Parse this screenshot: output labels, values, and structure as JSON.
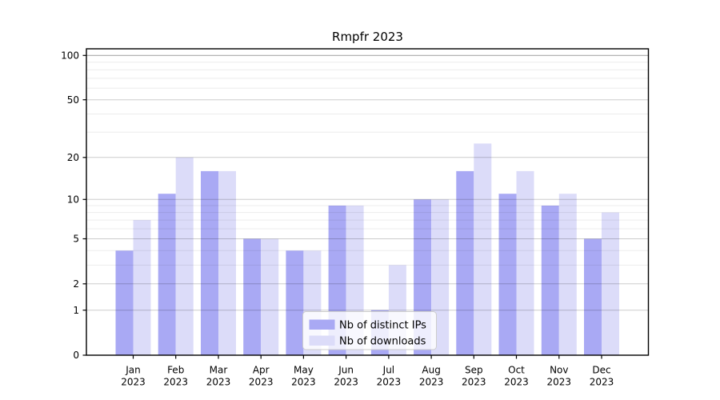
{
  "page": {
    "title": "Rmpfr 2023"
  },
  "chart_data": {
    "type": "bar",
    "title": "Rmpfr 2023",
    "categories": [
      "Jan",
      "Feb",
      "Mar",
      "Apr",
      "May",
      "Jun",
      "Jul",
      "Aug",
      "Sep",
      "Oct",
      "Nov",
      "Dec"
    ],
    "year": "2023",
    "series": [
      {
        "name": "Nb of distinct IPs",
        "color": "#a9a9f4",
        "values": [
          4,
          11,
          16,
          5,
          4,
          9,
          1,
          10,
          16,
          11,
          9,
          5
        ]
      },
      {
        "name": "Nb of downloads",
        "color": "#dcdcf9",
        "values": [
          7,
          20,
          16,
          5,
          4,
          9,
          3,
          10,
          25,
          16,
          11,
          8
        ]
      }
    ],
    "y_scale": "log1p",
    "ylim": [
      0,
      110
    ],
    "y_tick_values": [
      0,
      1,
      2,
      5,
      10,
      20,
      50,
      100
    ],
    "y_tick_labels": [
      "0",
      "1",
      "2",
      "5",
      "10",
      "20",
      "50",
      "100"
    ],
    "y_minor_gridlines": [
      3,
      4,
      6,
      7,
      8,
      9,
      30,
      40,
      60,
      70,
      80,
      90
    ],
    "grid": true,
    "legend": {
      "position": "lower center"
    }
  },
  "colors": {
    "series_ips": "#a9a9f4",
    "series_downloads": "#dcdcf9",
    "axis": "#000000",
    "grid_major": "#cccccc",
    "grid_minor": "#ececec",
    "grid_top": "#ababab",
    "background": "#ffffff"
  }
}
